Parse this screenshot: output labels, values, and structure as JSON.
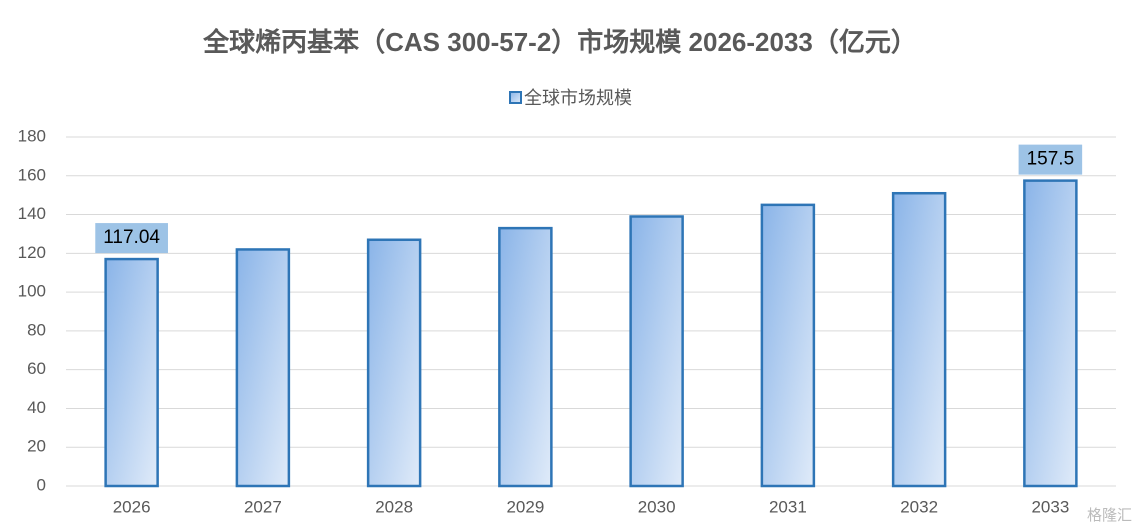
{
  "chart_data": {
    "type": "bar",
    "title": "全球烯丙基苯（CAS 300-57-2）市场规模 2026-2033（亿元）",
    "categories": [
      "2026",
      "2027",
      "2028",
      "2029",
      "2030",
      "2031",
      "2032",
      "2033"
    ],
    "series": [
      {
        "name": "全球市场规模",
        "color": "#2e75b6",
        "values": [
          117.04,
          122,
          127,
          133,
          139,
          145,
          151,
          157.5
        ],
        "value_labels": [
          "117.04",
          null,
          null,
          null,
          null,
          null,
          null,
          "157.5"
        ]
      }
    ],
    "ylim": [
      0,
      180
    ],
    "yticks": [
      0,
      20,
      40,
      60,
      80,
      100,
      120,
      140,
      160,
      180
    ],
    "grid": true,
    "legend": "top",
    "watermark": "格隆汇"
  }
}
